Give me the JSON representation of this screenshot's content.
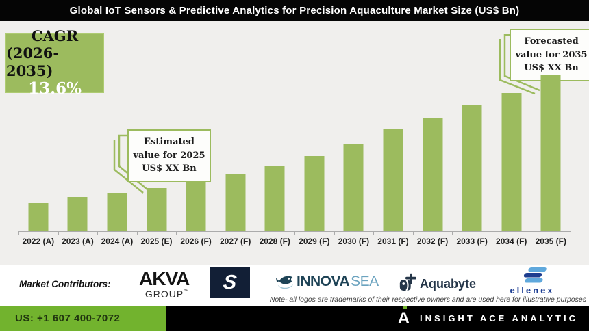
{
  "title": "Global IoT Sensors & Predictive Analytics for Precision Aquaculture Market Size (US$ Bn)",
  "cagr": {
    "line1": "CAGR",
    "line2": "(2026-2035)",
    "value": "13.6%"
  },
  "annotations": {
    "estimated": {
      "line1": "Estimated",
      "line2": "value for 2025",
      "line3": "US$ XX Bn"
    },
    "forecasted": {
      "line1": "Forecasted",
      "line2": "value for 2035",
      "line3": "US$ XX Bn"
    }
  },
  "chart_data": {
    "type": "bar",
    "title": "Global IoT Sensors & Predictive Analytics for Precision Aquaculture Market Size (US$ Bn)",
    "categories": [
      "2022 (A)",
      "2023 (A)",
      "2024 (A)",
      "2025 (E)",
      "2026 (F)",
      "2027 (F)",
      "2028 (F)",
      "2029 (F)",
      "2030 (F)",
      "2031 (F)",
      "2032 (F)",
      "2033 (F)",
      "2034 (F)",
      "2035 (F)"
    ],
    "values": [
      41,
      50,
      56,
      63,
      72,
      83,
      95,
      110,
      128,
      149,
      165,
      185,
      202,
      229
    ],
    "unit": "relative size (US$ Bn values masked as XX)",
    "cagr_2026_2035": "13.6%",
    "bar_color": "#9CBB5E",
    "xlabel": "",
    "ylabel": "",
    "grid": false,
    "legend": false
  },
  "contributors": {
    "label": "Market Contributors:",
    "akva": {
      "main": "AKVA",
      "sub": "GROUP",
      "tm": "™"
    },
    "scaleaq": {
      "letter": "S"
    },
    "innovasea": {
      "part1": "INNOVA",
      "part2": "SEA"
    },
    "aquabyte": {
      "text": "Aquabyte"
    },
    "ellenex": {
      "text": "ellenex"
    },
    "note": "Note- all logos are trademarks of their respective owners and are used here for illustrative purposes"
  },
  "footer": {
    "phone": "US: +1 607 400-7072",
    "brand_mark": "A",
    "brand": "INSIGHT ACE ANALYTIC"
  },
  "colors": {
    "accent_green": "#9CBB5E",
    "footer_green": "#72B32E",
    "title_bg": "#050505",
    "chart_bg": "#F0EFED",
    "navy": "#121F36",
    "innovasea_dark": "#1E4356",
    "innovasea_light": "#6BA3BF",
    "aquabyte_navy": "#253649",
    "ellenex_blue": "#1D3E93"
  }
}
